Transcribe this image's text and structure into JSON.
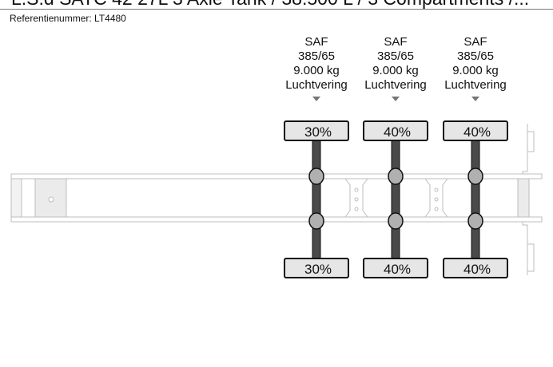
{
  "header": {
    "title": "L.S.d SATC 42 27L 3 Axle Tank / 38.500 L / 3 Compartments /...",
    "reference": "Referentienummer: LT4480"
  },
  "axles": [
    {
      "brand": "SAF",
      "tire": "385/65",
      "load": "9.000 kg",
      "suspension": "Luchtvering",
      "top_pct": "30%",
      "bottom_pct": "30%"
    },
    {
      "brand": "SAF",
      "tire": "385/65",
      "load": "9.000 kg",
      "suspension": "Luchtvering",
      "top_pct": "40%",
      "bottom_pct": "40%"
    },
    {
      "brand": "SAF",
      "tire": "385/65",
      "load": "9.000 kg",
      "suspension": "Luchtvering",
      "top_pct": "40%",
      "bottom_pct": "40%"
    }
  ],
  "colors": {
    "axle": "#4a4a4a",
    "tire_fill": "#e6e6e6",
    "hub": "#b0b0b0",
    "frame": "#bdbdbd"
  }
}
